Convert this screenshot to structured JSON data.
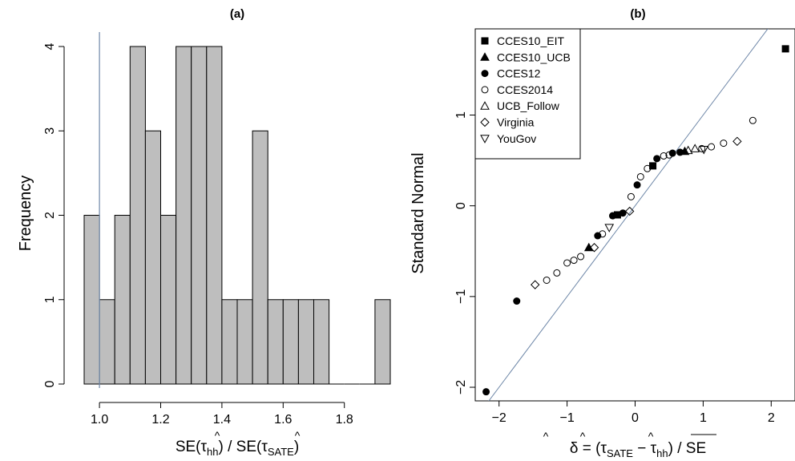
{
  "chart_data": [
    {
      "type": "bar",
      "title": "(a)",
      "xlabel_parts": {
        "se": "SE(",
        "tau": "τ",
        "sub1": "hh",
        "mid": ") / SE(",
        "sub2": "SATE",
        "end": ")"
      },
      "ylabel": "Frequency",
      "xlim": [
        0.95,
        1.95
      ],
      "ylim": [
        0,
        4
      ],
      "bin_width": 0.05,
      "x_ticks": [
        "1.0",
        "1.2",
        "1.4",
        "1.6",
        "1.8"
      ],
      "y_ticks": [
        "0",
        "1",
        "2",
        "3",
        "4"
      ],
      "bins": [
        {
          "start": 0.95,
          "end": 1.0,
          "count": 2
        },
        {
          "start": 1.0,
          "end": 1.05,
          "count": 1
        },
        {
          "start": 1.05,
          "end": 1.1,
          "count": 2
        },
        {
          "start": 1.1,
          "end": 1.15,
          "count": 4
        },
        {
          "start": 1.15,
          "end": 1.2,
          "count": 3
        },
        {
          "start": 1.2,
          "end": 1.25,
          "count": 2
        },
        {
          "start": 1.25,
          "end": 1.3,
          "count": 4
        },
        {
          "start": 1.3,
          "end": 1.35,
          "count": 4
        },
        {
          "start": 1.35,
          "end": 1.4,
          "count": 4
        },
        {
          "start": 1.4,
          "end": 1.45,
          "count": 1
        },
        {
          "start": 1.45,
          "end": 1.5,
          "count": 1
        },
        {
          "start": 1.5,
          "end": 1.55,
          "count": 3
        },
        {
          "start": 1.55,
          "end": 1.6,
          "count": 1
        },
        {
          "start": 1.6,
          "end": 1.65,
          "count": 1
        },
        {
          "start": 1.65,
          "end": 1.7,
          "count": 1
        },
        {
          "start": 1.7,
          "end": 1.75,
          "count": 1
        },
        {
          "start": 1.75,
          "end": 1.8,
          "count": 0
        },
        {
          "start": 1.8,
          "end": 1.85,
          "count": 0
        },
        {
          "start": 1.85,
          "end": 1.9,
          "count": 0
        },
        {
          "start": 1.9,
          "end": 1.95,
          "count": 1
        }
      ],
      "reference_line_x": 1.0,
      "bar_color": "#bebebe",
      "line_color": "#6e87a8"
    },
    {
      "type": "scatter",
      "title": "(b)",
      "xlabel_parts": {
        "delta": "δ",
        "eq": " = (",
        "tau": "τ",
        "sub1": "SATE",
        "minus": " − ",
        "sub2": "hh",
        "close": ") / ",
        "se": "SE"
      },
      "ylabel": "Standard Normal",
      "xlim": [
        -2.35,
        2.35
      ],
      "ylim": [
        -2.15,
        1.95
      ],
      "x_ticks": [
        {
          "value": -2,
          "label": "−2"
        },
        {
          "value": -1,
          "label": "−1"
        },
        {
          "value": 0,
          "label": "0"
        },
        {
          "value": 1,
          "label": "1"
        },
        {
          "value": 2,
          "label": "2"
        }
      ],
      "y_ticks": [
        {
          "value": -2,
          "label": "−2"
        },
        {
          "value": -1,
          "label": "−1"
        },
        {
          "value": 0,
          "label": "0"
        },
        {
          "value": 1,
          "label": "1"
        }
      ],
      "reference_line": {
        "slope": 1,
        "intercept": 0
      },
      "legend_position": "top-left",
      "line_color": "#6e87a8",
      "series": [
        {
          "name": "CCES10_EIT",
          "marker": "filled-square",
          "points": [
            [
              0.26,
              0.44
            ],
            [
              2.21,
              1.73
            ],
            [
              -0.26,
              -0.1
            ]
          ]
        },
        {
          "name": "CCES10_UCB",
          "marker": "filled-triangle",
          "points": [
            [
              -0.68,
              -0.46
            ],
            [
              0.73,
              0.6
            ]
          ]
        },
        {
          "name": "CCES12",
          "marker": "filled-circle",
          "points": [
            [
              -2.19,
              -2.05
            ],
            [
              -1.74,
              -1.05
            ],
            [
              -0.55,
              -0.33
            ],
            [
              -0.33,
              -0.11
            ],
            [
              -0.18,
              -0.08
            ],
            [
              0.03,
              0.23
            ],
            [
              0.32,
              0.52
            ],
            [
              0.66,
              0.59
            ],
            [
              0.55,
              0.58
            ]
          ]
        },
        {
          "name": "CCES2014",
          "marker": "open-circle",
          "points": [
            [
              -1.3,
              -0.82
            ],
            [
              -1.15,
              -0.74
            ],
            [
              -1.0,
              -0.63
            ],
            [
              -0.9,
              -0.6
            ],
            [
              -0.8,
              -0.56
            ],
            [
              -0.48,
              -0.31
            ],
            [
              -0.06,
              0.1
            ],
            [
              0.08,
              0.32
            ],
            [
              0.18,
              0.41
            ],
            [
              0.42,
              0.55
            ],
            [
              0.5,
              0.56
            ],
            [
              0.98,
              0.63
            ],
            [
              1.12,
              0.65
            ],
            [
              1.3,
              0.69
            ],
            [
              1.73,
              0.94
            ]
          ]
        },
        {
          "name": "UCB_Follow",
          "marker": "open-triangle",
          "points": [
            [
              0.88,
              0.63
            ],
            [
              0.78,
              0.61
            ]
          ]
        },
        {
          "name": "Virginia",
          "marker": "open-diamond",
          "points": [
            [
              -1.47,
              -0.87
            ],
            [
              -0.6,
              -0.46
            ],
            [
              -0.08,
              -0.06
            ],
            [
              1.5,
              0.71
            ]
          ]
        },
        {
          "name": "YouGov",
          "marker": "open-triangle-down",
          "points": [
            [
              -0.38,
              -0.24
            ],
            [
              1.01,
              0.62
            ]
          ]
        }
      ]
    }
  ]
}
